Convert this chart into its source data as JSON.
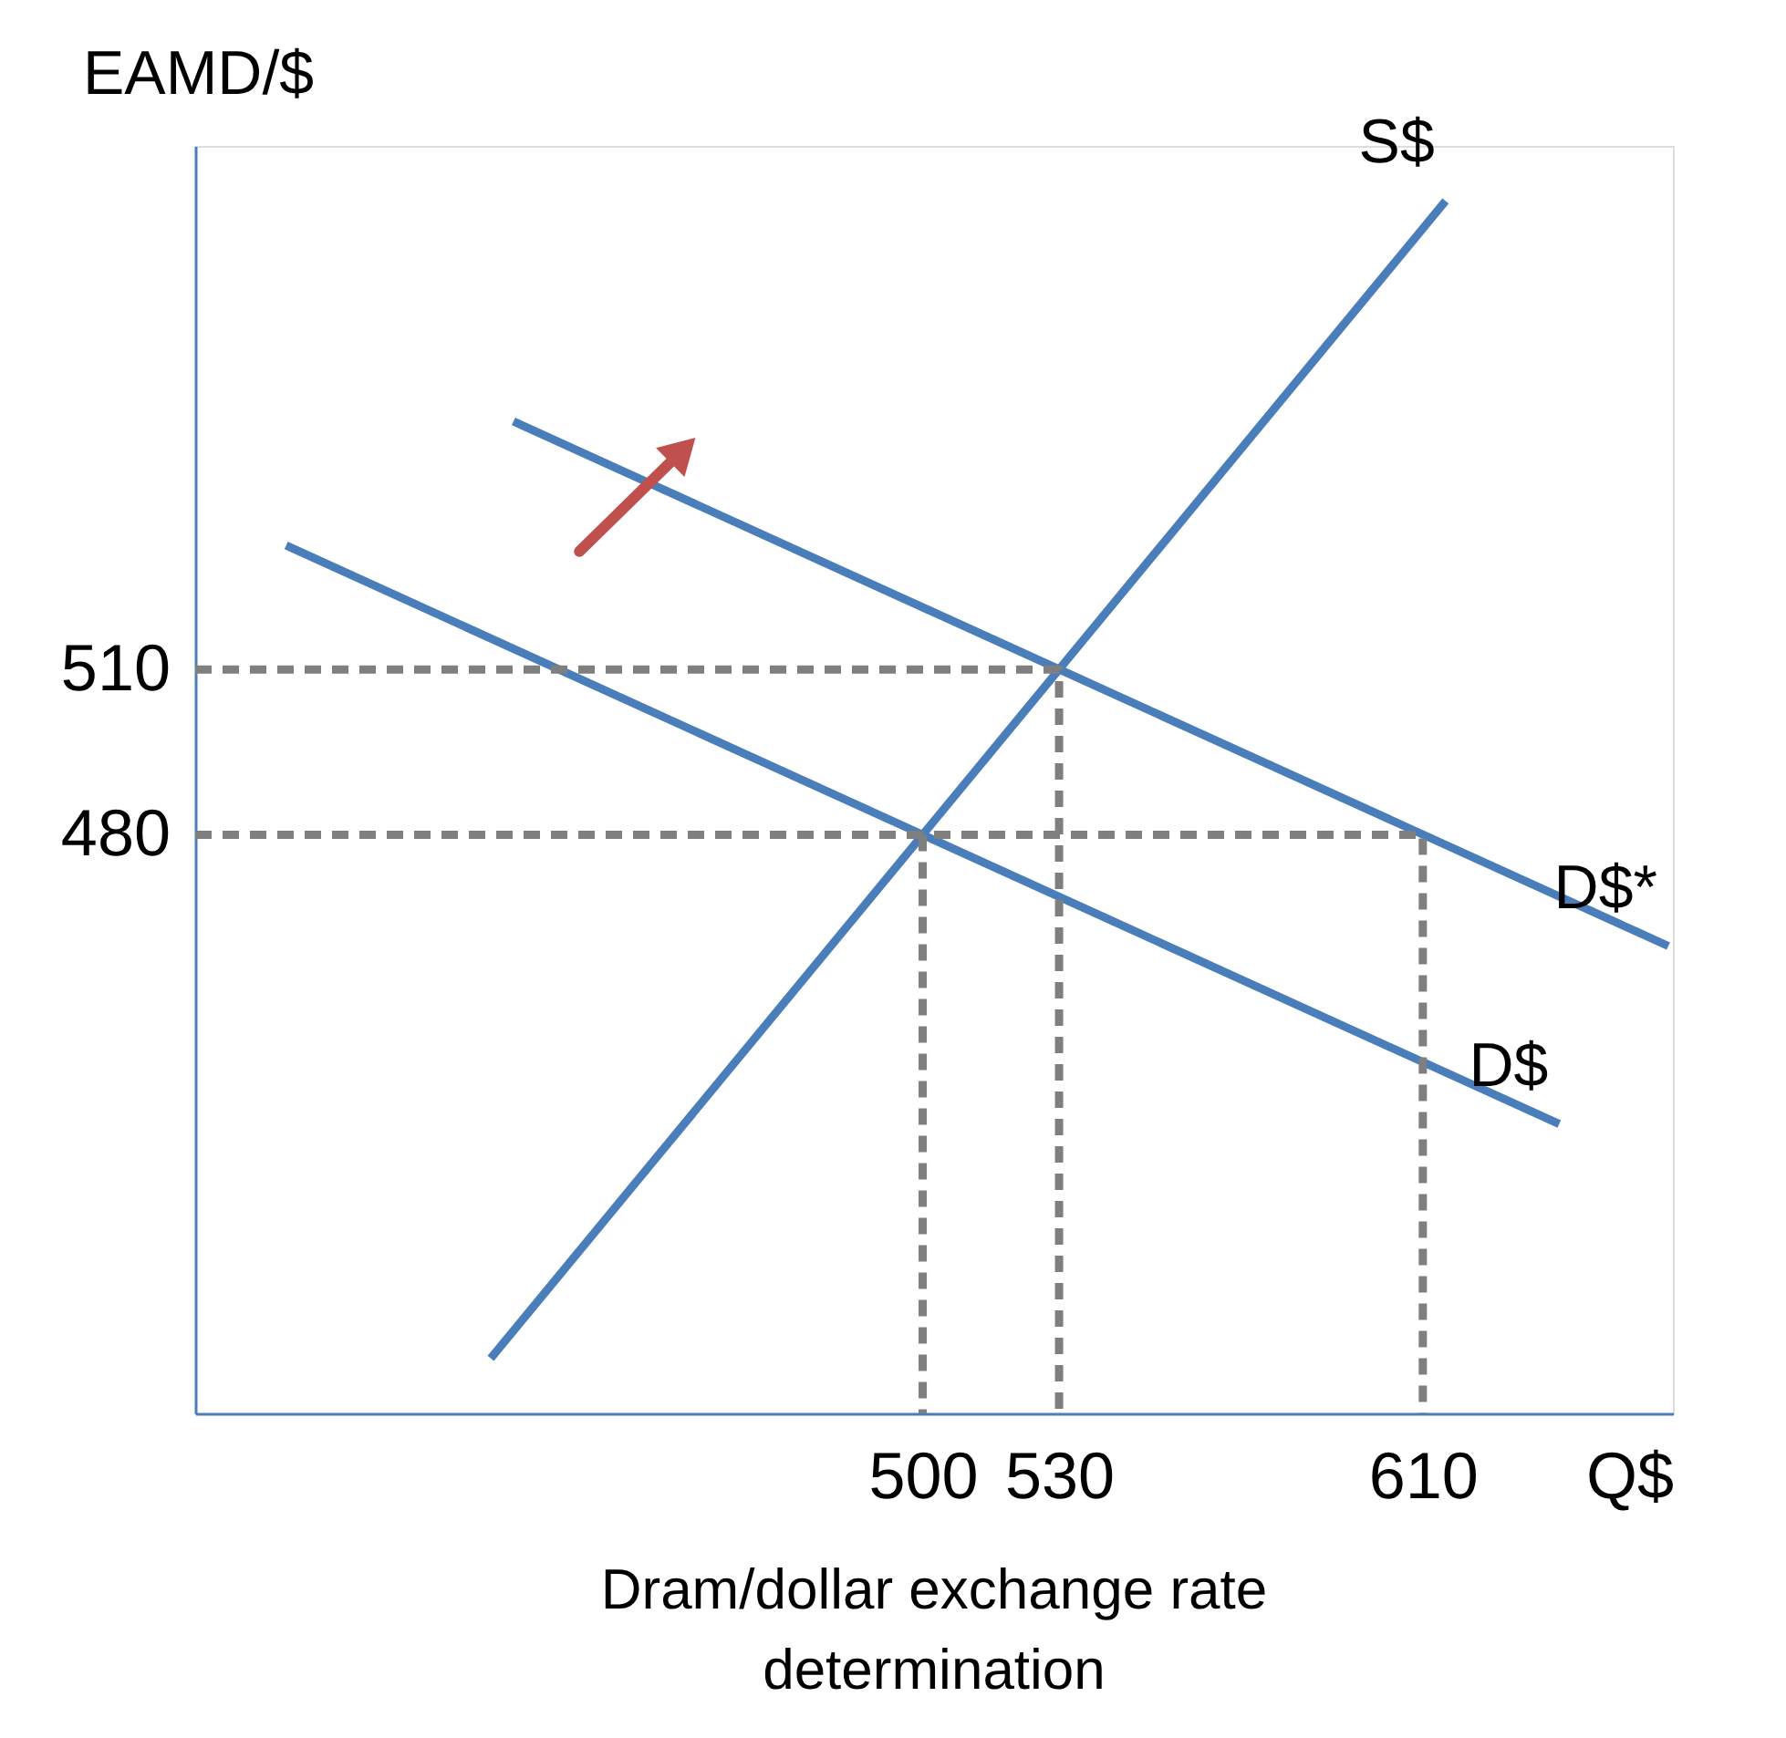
{
  "chart_data": {
    "type": "line",
    "title": "Dram/dollar exchange rate determination",
    "xlabel": "Q$",
    "ylabel": "EAMD/$",
    "xlim": [
      340,
      665
    ],
    "ylim": [
      375,
      605
    ],
    "xticks": [
      500,
      530,
      610
    ],
    "yticks": [
      480,
      510
    ],
    "grid": false,
    "legend": false,
    "marker": "none",
    "series": [
      {
        "name": "S$",
        "color": "#4a7ebb",
        "line_style": "solid",
        "x": [
          405,
          615
        ],
        "values": [
          385,
          595
        ]
      },
      {
        "name": "D$",
        "color": "#4a7ebb",
        "line_style": "solid",
        "x": [
          360,
          640
        ],
        "values": [
          532.5,
          427.5
        ]
      },
      {
        "name": "D$*",
        "color": "#4a7ebb",
        "line_style": "solid",
        "x": [
          410,
          664
        ],
        "values": [
          555,
          459.8
        ]
      },
      {
        "color": "#7f7f7f",
        "line_style": "dashed",
        "x": [
          340,
          530,
          530
        ],
        "values": [
          510,
          510,
          375
        ]
      },
      {
        "color": "#7f7f7f",
        "line_style": "dashed",
        "x": [
          340,
          610,
          610
        ],
        "values": [
          480,
          480,
          375
        ]
      },
      {
        "color": "#7f7f7f",
        "line_style": "dashed",
        "x": [
          500,
          500
        ],
        "values": [
          480,
          375
        ]
      }
    ]
  }
}
